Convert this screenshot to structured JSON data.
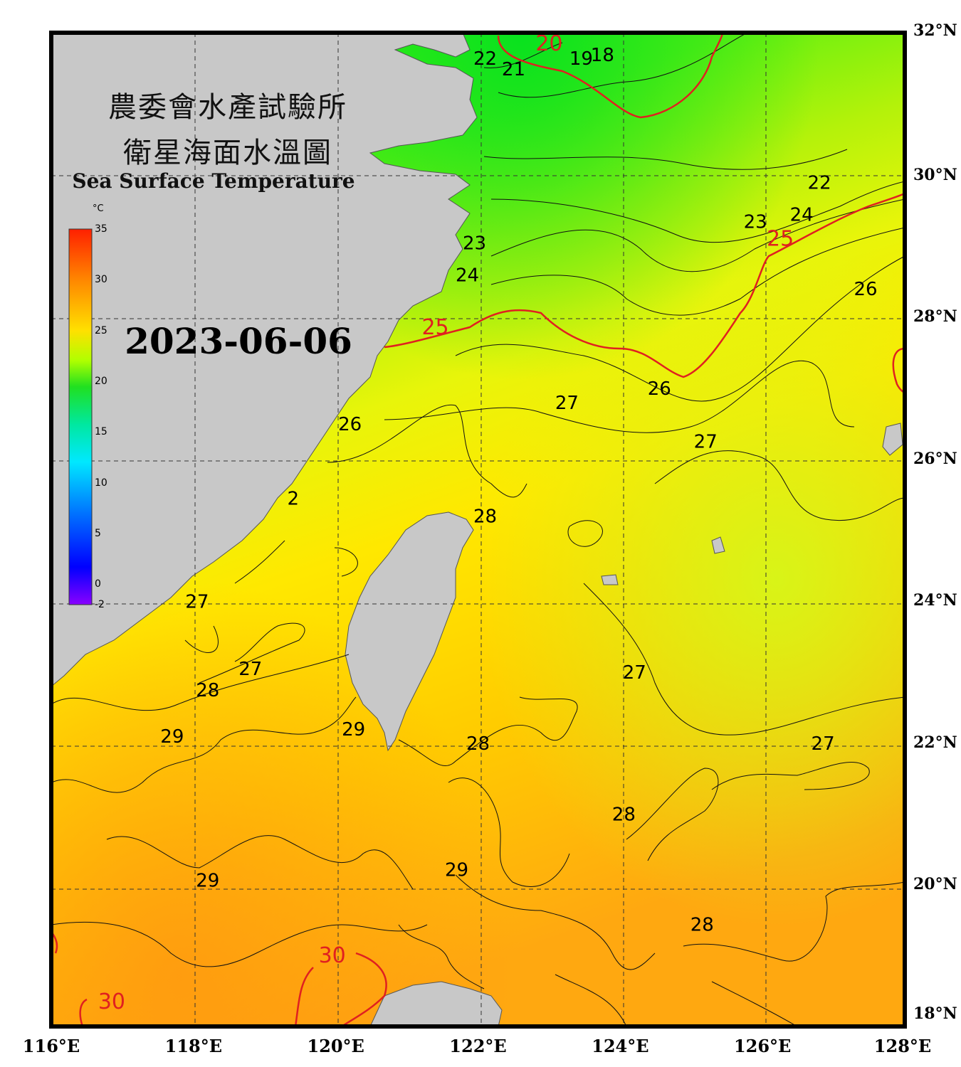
{
  "map": {
    "title_zh_line1": "農委會水產試驗所",
    "title_zh_line2": "衛星海面水溫圖",
    "title_en": "Sea Surface Temperature",
    "date": "2023-06-06"
  },
  "colorbar": {
    "unit": "°C",
    "ticks": [
      "35",
      "30",
      "25",
      "20",
      "15",
      "10",
      "5",
      "0",
      "-2"
    ],
    "tick_values": [
      35,
      30,
      25,
      20,
      15,
      10,
      5,
      0,
      -2
    ],
    "colors": [
      "#ff2000",
      "#ffa000",
      "#ffff00",
      "#88ff00",
      "#00e040",
      "#00ffff",
      "#0080ff",
      "#0000ff",
      "#8000ff"
    ]
  },
  "axes": {
    "lon_labels": [
      "116°E",
      "118°E",
      "120°E",
      "122°E",
      "124°E",
      "126°E",
      "128°E"
    ],
    "lat_labels": [
      "32°N",
      "30°N",
      "28°N",
      "26°N",
      "24°N",
      "22°N",
      "20°N",
      "18°N"
    ]
  },
  "contour_labels": [
    {
      "text": "22",
      "lon": 122.1,
      "lat": 31.55,
      "color": "#000000"
    },
    {
      "text": "21",
      "lon": 122.5,
      "lat": 31.4,
      "color": "#000000"
    },
    {
      "text": "20",
      "lon": 123.0,
      "lat": 31.75,
      "color": "#e02020"
    },
    {
      "text": "19",
      "lon": 123.45,
      "lat": 31.55,
      "color": "#000000"
    },
    {
      "text": "18",
      "lon": 123.75,
      "lat": 31.6,
      "color": "#000000"
    },
    {
      "text": "22",
      "lon": 126.8,
      "lat": 29.8,
      "color": "#000000"
    },
    {
      "text": "24",
      "lon": 126.55,
      "lat": 29.35,
      "color": "#000000"
    },
    {
      "text": "23",
      "lon": 125.9,
      "lat": 29.25,
      "color": "#000000"
    },
    {
      "text": "25",
      "lon": 126.25,
      "lat": 29.0,
      "color": "#e02020"
    },
    {
      "text": "23",
      "lon": 121.95,
      "lat": 28.95,
      "color": "#000000"
    },
    {
      "text": "24",
      "lon": 121.85,
      "lat": 28.5,
      "color": "#000000"
    },
    {
      "text": "25",
      "lon": 121.4,
      "lat": 27.75,
      "color": "#e02020"
    },
    {
      "text": "26",
      "lon": 127.45,
      "lat": 28.3,
      "color": "#000000"
    },
    {
      "text": "26",
      "lon": 124.55,
      "lat": 26.9,
      "color": "#000000"
    },
    {
      "text": "27",
      "lon": 123.25,
      "lat": 26.7,
      "color": "#000000"
    },
    {
      "text": "27",
      "lon": 125.2,
      "lat": 26.15,
      "color": "#000000"
    },
    {
      "text": "26",
      "lon": 120.2,
      "lat": 26.4,
      "color": "#000000"
    },
    {
      "text": "2",
      "lon": 119.4,
      "lat": 25.35,
      "color": "#000000"
    },
    {
      "text": "28",
      "lon": 122.1,
      "lat": 25.1,
      "color": "#000000"
    },
    {
      "text": "27",
      "lon": 118.05,
      "lat": 23.9,
      "color": "#000000"
    },
    {
      "text": "27",
      "lon": 118.8,
      "lat": 22.95,
      "color": "#000000"
    },
    {
      "text": "28",
      "lon": 118.2,
      "lat": 22.65,
      "color": "#000000"
    },
    {
      "text": "27",
      "lon": 124.2,
      "lat": 22.9,
      "color": "#000000"
    },
    {
      "text": "29",
      "lon": 117.7,
      "lat": 22.0,
      "color": "#000000"
    },
    {
      "text": "29",
      "lon": 120.25,
      "lat": 22.1,
      "color": "#000000"
    },
    {
      "text": "28",
      "lon": 122.0,
      "lat": 21.9,
      "color": "#000000"
    },
    {
      "text": "27",
      "lon": 126.85,
      "lat": 21.9,
      "color": "#000000"
    },
    {
      "text": "28",
      "lon": 124.05,
      "lat": 20.9,
      "color": "#000000"
    },
    {
      "text": "29",
      "lon": 121.7,
      "lat": 20.12,
      "color": "#000000"
    },
    {
      "text": "29",
      "lon": 118.2,
      "lat": 19.97,
      "color": "#000000"
    },
    {
      "text": "28",
      "lon": 125.15,
      "lat": 19.35,
      "color": "#000000"
    },
    {
      "text": "30",
      "lon": 119.95,
      "lat": 18.9,
      "color": "#e02020"
    },
    {
      "text": "30",
      "lon": 116.85,
      "lat": 18.25,
      "color": "#e02020"
    }
  ]
}
